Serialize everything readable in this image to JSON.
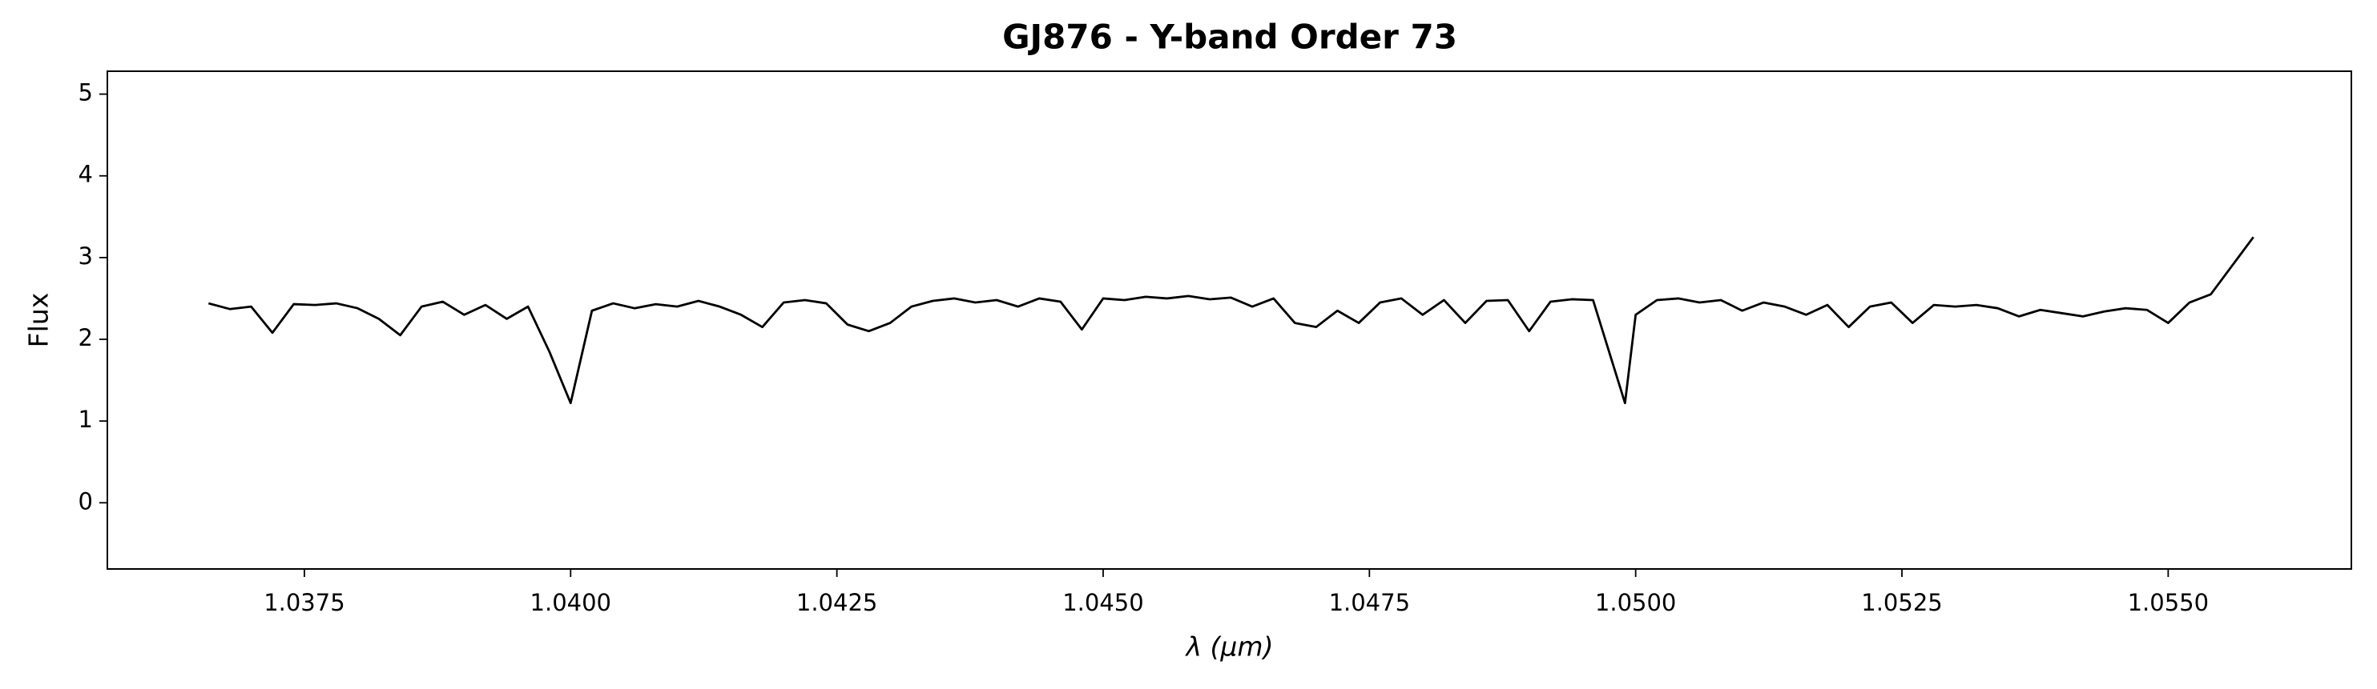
{
  "chart_data": {
    "type": "line",
    "title": "GJ876 - Y-band Order 73",
    "x_label": "λ (μm)",
    "y_label": "Flux",
    "x": [
      1.0366,
      1.0368,
      1.037,
      1.0372,
      1.0374,
      1.0376,
      1.0378,
      1.038,
      1.0382,
      1.0384,
      1.0386,
      1.0388,
      1.039,
      1.0392,
      1.0394,
      1.0396,
      1.0398,
      1.04,
      1.0402,
      1.0404,
      1.0406,
      1.0408,
      1.041,
      1.0412,
      1.0414,
      1.0416,
      1.0418,
      1.042,
      1.0422,
      1.0424,
      1.0426,
      1.0428,
      1.043,
      1.0432,
      1.0434,
      1.0436,
      1.0438,
      1.044,
      1.0442,
      1.0444,
      1.0446,
      1.0448,
      1.045,
      1.0452,
      1.0454,
      1.0456,
      1.0458,
      1.046,
      1.0462,
      1.0464,
      1.0466,
      1.0468,
      1.047,
      1.0472,
      1.0474,
      1.0476,
      1.0478,
      1.048,
      1.0482,
      1.0484,
      1.0486,
      1.0488,
      1.049,
      1.0492,
      1.0494,
      1.0496,
      1.0499,
      1.05,
      1.0502,
      1.0504,
      1.0506,
      1.0508,
      1.051,
      1.0512,
      1.0514,
      1.0516,
      1.0518,
      1.052,
      1.0522,
      1.0524,
      1.0526,
      1.0528,
      1.053,
      1.0532,
      1.0534,
      1.0536,
      1.0538,
      1.054,
      1.0542,
      1.0544,
      1.0546,
      1.0548,
      1.055,
      1.0552,
      1.0554,
      1.0556,
      1.0558
    ],
    "series": [
      {
        "color": "#000000",
        "values": [
          2.44,
          2.37,
          2.4,
          2.08,
          2.43,
          2.42,
          2.44,
          2.38,
          2.25,
          2.05,
          2.4,
          2.46,
          2.3,
          2.42,
          2.25,
          2.4,
          1.85,
          1.22,
          2.35,
          2.44,
          2.38,
          2.43,
          2.4,
          2.47,
          2.4,
          2.3,
          2.15,
          2.45,
          2.48,
          2.44,
          2.18,
          2.1,
          2.2,
          2.4,
          2.47,
          2.5,
          2.45,
          2.48,
          2.4,
          2.5,
          2.46,
          2.12,
          2.5,
          2.48,
          2.52,
          2.5,
          2.53,
          2.49,
          2.51,
          2.4,
          2.5,
          2.2,
          2.15,
          2.35,
          2.2,
          2.45,
          2.5,
          2.3,
          2.48,
          2.2,
          2.47,
          2.48,
          2.1,
          2.46,
          2.49,
          2.48,
          1.22,
          2.3,
          2.48,
          2.5,
          2.45,
          2.48,
          2.35,
          2.45,
          2.4,
          2.3,
          2.42,
          2.15,
          2.4,
          2.45,
          2.2,
          2.42,
          2.4,
          2.42,
          2.38,
          2.28,
          2.36,
          2.32,
          2.28,
          2.34,
          2.38,
          2.36,
          2.2,
          2.45,
          2.55,
          2.9,
          3.25
        ]
      }
    ],
    "xlim": [
      1.03565,
      1.05672
    ],
    "ylim": [
      -0.81,
      5.28
    ],
    "xticks": [
      1.0375,
      {
        "value": 1.04,
        "label": "1.0400"
      },
      1.0425,
      {
        "value": 1.045,
        "label": "1.0450"
      },
      1.0475,
      {
        "value": 1.05,
        "label": "1.0500"
      },
      1.0525,
      {
        "value": 1.055,
        "label": "1.0550"
      }
    ],
    "yticks": [
      0,
      1,
      2,
      3,
      4,
      5
    ],
    "grid": false
  }
}
